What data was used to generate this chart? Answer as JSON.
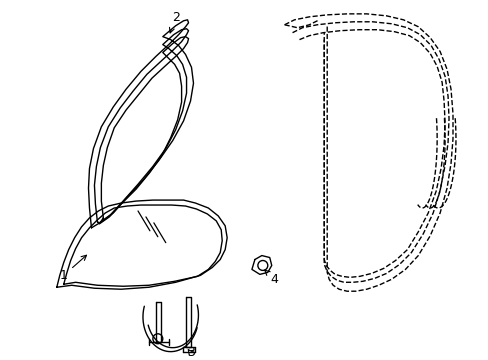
{
  "bg_color": "#ffffff",
  "line_color": "#000000",
  "lw": 1.0,
  "lw_thick": 1.5,
  "label_fs": 9
}
